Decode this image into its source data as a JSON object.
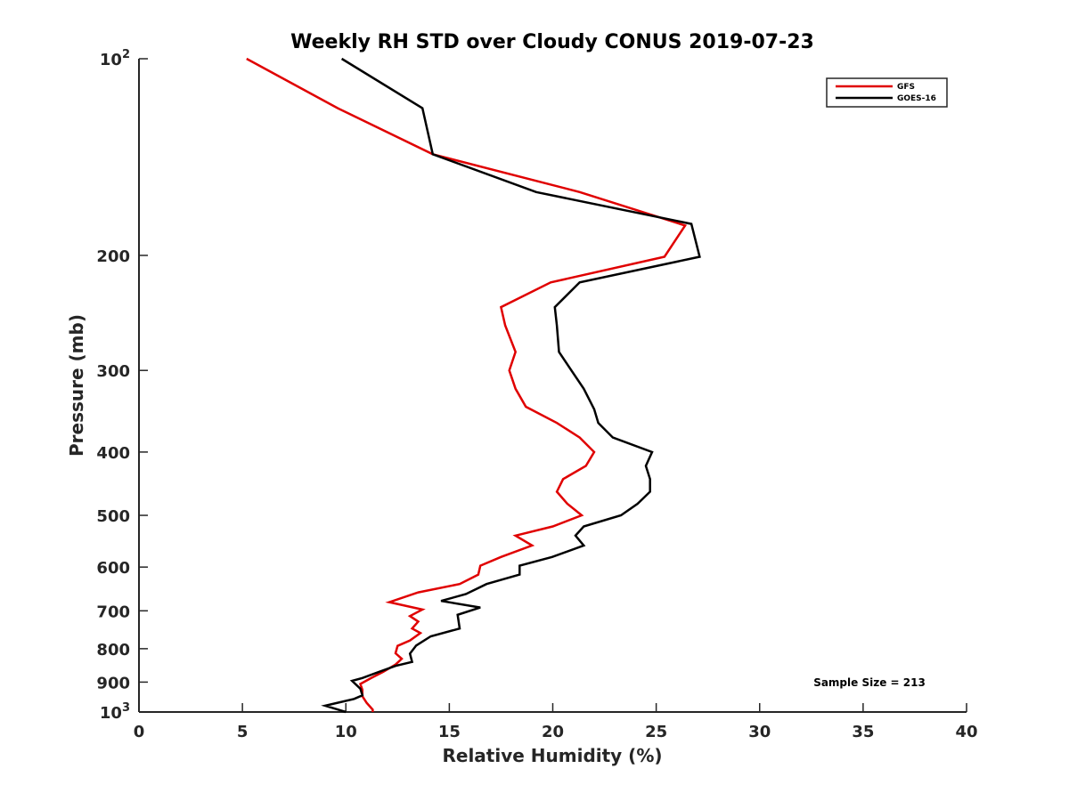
{
  "chart_data": {
    "type": "line",
    "title": "Weekly RH STD over Cloudy CONUS 2019-07-23",
    "xlabel": "Relative Humidity (%)",
    "ylabel": "Pressure (mb)",
    "xlim": [
      0,
      40
    ],
    "ylim": [
      100,
      1000
    ],
    "yscale": "log",
    "yreversed": true,
    "grid": false,
    "legend_position": "top-right",
    "x_ticks": [
      0,
      5,
      10,
      15,
      20,
      25,
      30,
      35,
      40
    ],
    "x_tick_labels": [
      "0",
      "5",
      "10",
      "15",
      "20",
      "25",
      "30",
      "35",
      "40"
    ],
    "y_ticks": [
      100,
      200,
      300,
      400,
      500,
      600,
      700,
      800,
      900,
      1000
    ],
    "y_tick_labels": [
      {
        "base": "10",
        "exp": "2"
      },
      {
        "base": "200",
        "exp": ""
      },
      {
        "base": "300",
        "exp": ""
      },
      {
        "base": "400",
        "exp": ""
      },
      {
        "base": "500",
        "exp": ""
      },
      {
        "base": "600",
        "exp": ""
      },
      {
        "base": "700",
        "exp": ""
      },
      {
        "base": "800",
        "exp": ""
      },
      {
        "base": "900",
        "exp": ""
      },
      {
        "base": "10",
        "exp": "3"
      }
    ],
    "annotation": "Sample Size = 213",
    "series": [
      {
        "name": "GFS",
        "color": "#e00000",
        "x": [
          5.2,
          9.6,
          14.2,
          21.3,
          26.4,
          25.4,
          19.9,
          17.5,
          17.7,
          18.2,
          17.9,
          18.2,
          18.7,
          20.2,
          21.3,
          22.0,
          21.6,
          20.5,
          20.2,
          20.7,
          21.4,
          20.0,
          18.2,
          19.0,
          17.5,
          16.5,
          16.4,
          15.5,
          13.5,
          12.1,
          13.7,
          13.1,
          13.5,
          13.2,
          13.6,
          13.1,
          12.5,
          12.4,
          12.7,
          12.4,
          11.8,
          11.2,
          10.7,
          10.8,
          10.8,
          11.0,
          11.3,
          11.3
        ],
        "pressure": [
          100,
          119,
          140,
          160,
          180,
          201,
          220,
          240,
          256,
          281,
          300,
          320,
          341,
          361,
          380,
          400,
          420,
          440,
          460,
          480,
          500,
          520,
          537,
          556,
          579,
          597,
          616,
          637,
          656,
          679,
          697,
          713,
          727,
          745,
          757,
          777,
          792,
          813,
          829,
          846,
          868,
          888,
          906,
          925,
          946,
          968,
          992,
          1000
        ]
      },
      {
        "name": "GOES-16",
        "color": "#000000",
        "x": [
          9.8,
          13.7,
          14.2,
          19.2,
          26.7,
          27.1,
          21.3,
          20.1,
          20.2,
          20.3,
          20.9,
          21.5,
          22.0,
          22.2,
          22.9,
          24.8,
          24.5,
          24.7,
          24.7,
          24.1,
          23.3,
          21.5,
          21.1,
          21.5,
          19.97,
          18.4,
          18.4,
          16.8,
          15.8,
          14.6,
          16.5,
          15.4,
          15.5,
          14.1,
          13.4,
          13.1,
          13.2,
          12.4,
          11.6,
          10.8,
          10.3,
          10.7,
          10.8,
          10.4,
          9.0,
          10.0
        ],
        "pressure": [
          100,
          119,
          140,
          160,
          179,
          201,
          220,
          240,
          256,
          281,
          300,
          320,
          344,
          361,
          380,
          400,
          420,
          440,
          460,
          480,
          500,
          520,
          537,
          556,
          579,
          597,
          616,
          637,
          660,
          676,
          692,
          710,
          745,
          766,
          791,
          814,
          838,
          850,
          868,
          887,
          896,
          921,
          943,
          955,
          978,
          1000
        ]
      }
    ]
  }
}
